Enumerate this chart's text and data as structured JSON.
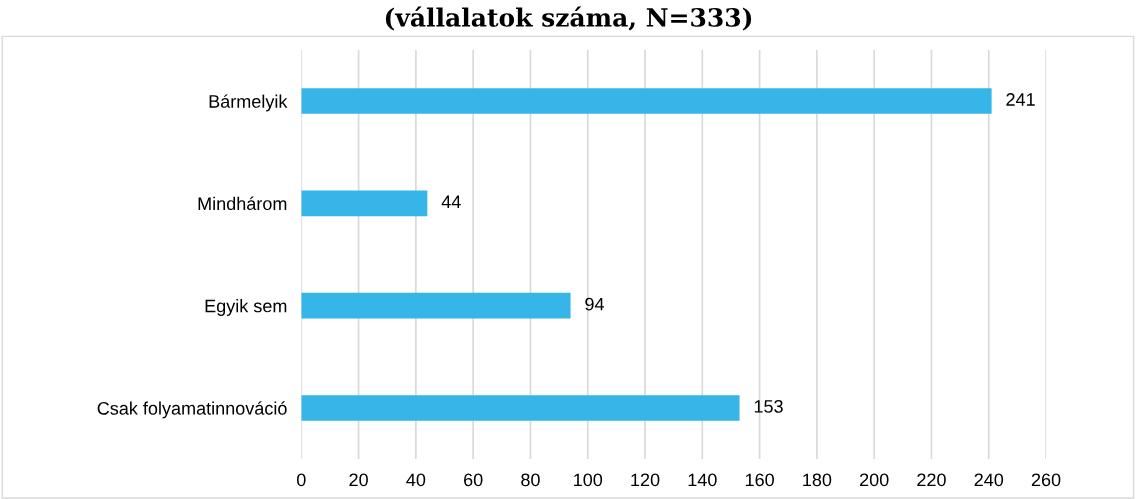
{
  "chart_data": {
    "type": "bar",
    "orientation": "horizontal",
    "title": "(vállalatok száma, N=333)",
    "categories": [
      "Bármelyik",
      "Mindhárom",
      "Egyik sem",
      "Csak folyamatinnováció"
    ],
    "values": [
      241,
      44,
      94,
      153
    ],
    "color": "#35b5e8",
    "data_labels": true,
    "grid": "x",
    "xlim": [
      0,
      260
    ],
    "xticks": [
      0,
      20,
      40,
      60,
      80,
      100,
      120,
      140,
      160,
      180,
      200,
      220,
      240,
      260
    ]
  }
}
